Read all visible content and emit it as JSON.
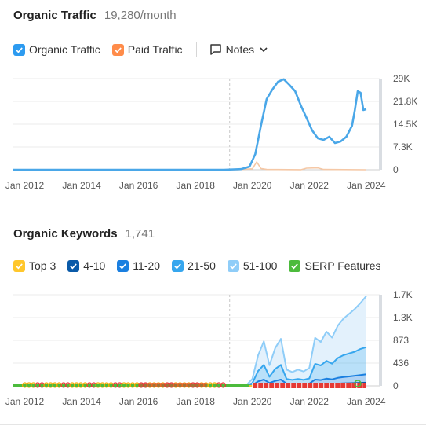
{
  "section1": {
    "title": "Organic Traffic",
    "value": "19,280/month",
    "legend": [
      {
        "label": "Organic Traffic",
        "color": "#2d9bf0",
        "checked": true
      },
      {
        "label": "Paid Traffic",
        "color": "#ff8c4a",
        "checked": true
      }
    ],
    "notes_label": "Notes"
  },
  "section2": {
    "title": "Organic Keywords",
    "value": "1,741",
    "legend": [
      {
        "label": "Top 3",
        "color": "#ffc72c"
      },
      {
        "label": "4-10",
        "color": "#0a5aa8"
      },
      {
        "label": "11-20",
        "color": "#1a7fe0"
      },
      {
        "label": "21-50",
        "color": "#36a6ee"
      },
      {
        "label": "51-100",
        "color": "#8fcdf8"
      },
      {
        "label": "SERP Features",
        "color": "#4cbb3c"
      }
    ]
  },
  "chart_data": [
    {
      "type": "line",
      "x_ticks": [
        "Jan 2012",
        "Jan 2014",
        "Jan 2016",
        "Jan 2018",
        "Jan 2020",
        "Jan 2022",
        "Jan 2024"
      ],
      "y_ticks": [
        "29K",
        "21.8K",
        "14.5K",
        "7.3K",
        "0"
      ],
      "ylim": [
        0,
        29000
      ],
      "xlim": [
        2011.6,
        2024.5
      ],
      "marker_x": 2019.2,
      "series": [
        {
          "name": "Organic Traffic",
          "color": "#4aa7e8",
          "x": [
            2011.6,
            2019.0,
            2019.6,
            2019.9,
            2020.1,
            2020.3,
            2020.5,
            2020.7,
            2020.9,
            2021.1,
            2021.3,
            2021.5,
            2021.7,
            2021.9,
            2022.1,
            2022.3,
            2022.5,
            2022.7,
            2022.9,
            2023.1,
            2023.3,
            2023.5,
            2023.6,
            2023.7,
            2023.8,
            2023.9,
            2024.0
          ],
          "y": [
            0,
            0,
            200,
            1000,
            5000,
            14000,
            22500,
            25500,
            28000,
            28800,
            27000,
            25000,
            20500,
            16500,
            12500,
            10000,
            9500,
            10500,
            8500,
            9000,
            10500,
            14000,
            19000,
            25000,
            24500,
            19000,
            19280
          ]
        },
        {
          "name": "Paid Traffic",
          "color": "#f5c8a6",
          "x": [
            2011.6,
            2019.5,
            2019.7,
            2020.0,
            2020.15,
            2020.3,
            2020.5,
            2021.7,
            2021.9,
            2022.3,
            2022.5,
            2024.0
          ],
          "y": [
            0,
            0,
            150,
            300,
            2500,
            400,
            100,
            0,
            500,
            600,
            100,
            0
          ]
        }
      ]
    },
    {
      "type": "area",
      "x_ticks": [
        "Jan 2012",
        "Jan 2014",
        "Jan 2016",
        "Jan 2018",
        "Jan 2020",
        "Jan 2022",
        "Jan 2024"
      ],
      "y_ticks": [
        "1.7K",
        "1.3K",
        "873",
        "436",
        "0"
      ],
      "ylim": [
        0,
        1745
      ],
      "xlim": [
        2011.6,
        2024.5
      ],
      "marker_x": 2019.2,
      "x": [
        2011.6,
        2019.0,
        2019.8,
        2020.0,
        2020.2,
        2020.4,
        2020.6,
        2020.8,
        2021.0,
        2021.2,
        2021.4,
        2021.6,
        2021.8,
        2022.0,
        2022.2,
        2022.4,
        2022.6,
        2022.8,
        2023.0,
        2023.2,
        2023.4,
        2023.6,
        2023.8,
        2024.0
      ],
      "series": [
        {
          "name": "51-100",
          "color": "#8fcdf8",
          "values": [
            0,
            0,
            15,
            80,
            300,
            450,
            220,
            400,
            500,
            180,
            150,
            180,
            160,
            200,
            500,
            450,
            560,
            500,
            620,
            700,
            760,
            820,
            880,
            980
          ]
        },
        {
          "name": "21-50",
          "color": "#36a6ee",
          "values": [
            0,
            0,
            5,
            40,
            200,
            280,
            120,
            230,
            280,
            90,
            80,
            90,
            80,
            100,
            300,
            280,
            340,
            300,
            380,
            420,
            440,
            460,
            500,
            520
          ]
        },
        {
          "name": "11-20",
          "color": "#1a7fe0",
          "values": [
            0,
            0,
            0,
            10,
            60,
            90,
            40,
            70,
            90,
            30,
            25,
            30,
            25,
            30,
            90,
            80,
            100,
            90,
            110,
            120,
            130,
            140,
            150,
            160
          ]
        },
        {
          "name": "4-10",
          "color": "#0a5aa8",
          "values": [
            0,
            0,
            0,
            3,
            20,
            25,
            12,
            20,
            25,
            10,
            8,
            10,
            8,
            10,
            25,
            25,
            30,
            28,
            35,
            38,
            40,
            42,
            45,
            48
          ]
        },
        {
          "name": "Top 3",
          "color": "#ffc72c",
          "values": [
            0,
            0,
            0,
            1,
            5,
            6,
            3,
            5,
            6,
            2,
            2,
            2,
            2,
            3,
            6,
            6,
            8,
            7,
            9,
            10,
            11,
            12,
            13,
            13
          ]
        }
      ],
      "serp_features": {
        "name": "SERP Features",
        "color": "#4cbb3c"
      }
    }
  ]
}
